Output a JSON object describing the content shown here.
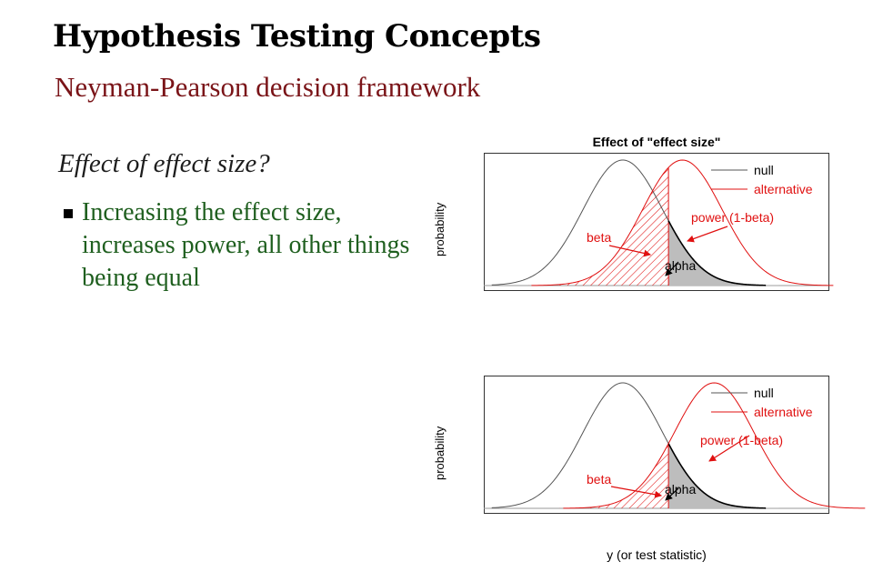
{
  "slide": {
    "title": "Hypothesis Testing Concepts",
    "subtitle": "Neyman-Pearson decision framework",
    "question": "Effect of effect size?",
    "bullet": "Increasing the effect size, increases power, all other things being equal"
  },
  "chart_data": [
    {
      "type": "area",
      "title": "Effect of \"effect size\"",
      "xlabel": "",
      "ylabel": "probability",
      "series": [
        {
          "name": "null",
          "color": "#555555",
          "mean": 0,
          "sd": 1
        },
        {
          "name": "alternative",
          "color": "#e01010",
          "mean": 1.5,
          "sd": 1
        }
      ],
      "critical_value": 1.15,
      "legend": "top-right",
      "annotations": [
        {
          "text": "beta",
          "color": "#e01010"
        },
        {
          "text": "power (1-beta)",
          "color": "#e01010"
        },
        {
          "text": "alpha",
          "color": "#000000"
        }
      ]
    },
    {
      "type": "area",
      "title": "",
      "xlabel": "y (or test statistic)",
      "ylabel": "probability",
      "series": [
        {
          "name": "null",
          "color": "#555555",
          "mean": 0,
          "sd": 1
        },
        {
          "name": "alternative",
          "color": "#e01010",
          "mean": 2.3,
          "sd": 1
        }
      ],
      "critical_value": 1.15,
      "legend": "top-right",
      "annotations": [
        {
          "text": "beta",
          "color": "#e01010"
        },
        {
          "text": "power (1-beta)",
          "color": "#e01010"
        },
        {
          "text": "alpha",
          "color": "#000000"
        }
      ]
    }
  ]
}
